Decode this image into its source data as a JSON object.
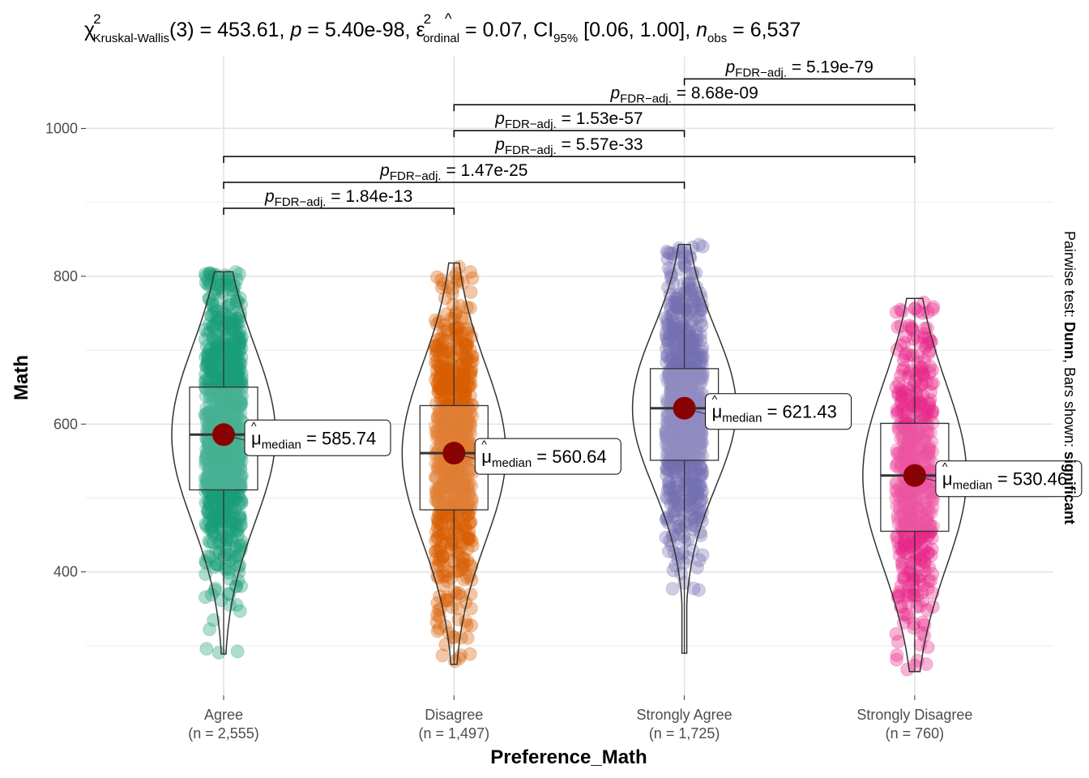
{
  "chart_data": {
    "type": "violin",
    "title": {
      "chi": "χ",
      "chi_sup": "2",
      "chi_sub": "Kruskal-Wallis",
      "stat_text": "(3) = 453.61, ",
      "p_sym": "p",
      "p_text": " = 5.40e-98, ",
      "eps": "ε",
      "eps_sup": "2",
      "eps_sub": "ordinal",
      "eps_text": " = 0.07, CI",
      "ci_sub": "95%",
      "ci_text": " [0.06, 1.00], ",
      "n_sym": "n",
      "n_sub": "obs",
      "n_text": " = 6,537"
    },
    "xlabel": "Preference_Math",
    "ylabel": "Math",
    "caption": {
      "prefix": "Pairwise test: ",
      "test": "Dunn",
      "middle": ", Bars shown: ",
      "shown": "significant"
    },
    "ylim": [
      233,
      1097
    ],
    "yticks": [
      400,
      600,
      800,
      1000
    ],
    "grid": true,
    "categories": [
      {
        "name": "Agree",
        "n_label": "(n = 2,555)",
        "color": "#1B9E77",
        "median": 585.74,
        "q1": 511,
        "q3": 650,
        "min": 289,
        "max": 806,
        "label_prefix": "μ",
        "label_sub": "median",
        "label_text": " = 585.74"
      },
      {
        "name": "Disagree",
        "n_label": "(n = 1,497)",
        "color": "#D95F02",
        "median": 560.64,
        "q1": 484,
        "q3": 625,
        "min": 275,
        "max": 818,
        "label_prefix": "μ",
        "label_sub": "median",
        "label_text": " = 560.64"
      },
      {
        "name": "Strongly Agree",
        "n_label": "(n = 1,725)",
        "color": "#7570B3",
        "median": 621.43,
        "q1": 551,
        "q3": 675,
        "min": 290,
        "max": 843,
        "label_prefix": "μ",
        "label_sub": "median",
        "label_text": " = 621.43"
      },
      {
        "name": "Strongly Disagree",
        "n_label": "(n = 760)",
        "color": "#E7298A",
        "median": 530.46,
        "q1": 455,
        "q3": 601,
        "min": 265,
        "max": 770,
        "label_prefix": "μ",
        "label_sub": "median",
        "label_text": " = 530.46"
      }
    ],
    "comparisons": [
      {
        "group1": "Agree",
        "group2": "Disagree",
        "y": 892,
        "p_sub": "FDR−adj.",
        "p_value": "1.84e-13"
      },
      {
        "group1": "Agree",
        "group2": "Strongly Agree",
        "y": 927,
        "p_sub": "FDR−adj.",
        "p_value": "1.47e-25"
      },
      {
        "group1": "Agree",
        "group2": "Strongly Disagree",
        "y": 962,
        "p_sub": "FDR−adj.",
        "p_value": "5.57e-33"
      },
      {
        "group1": "Disagree",
        "group2": "Strongly Agree",
        "y": 997,
        "p_sub": "FDR−adj.",
        "p_value": "1.53e-57"
      },
      {
        "group1": "Disagree",
        "group2": "Strongly Disagree",
        "y": 1032,
        "p_sub": "FDR−adj.",
        "p_value": "8.68e-09"
      },
      {
        "group1": "Strongly Agree",
        "group2": "Strongly Disagree",
        "y": 1067,
        "p_sub": "FDR−adj.",
        "p_value": "5.19e-79"
      }
    ],
    "median_point_color": "#8B0000"
  }
}
